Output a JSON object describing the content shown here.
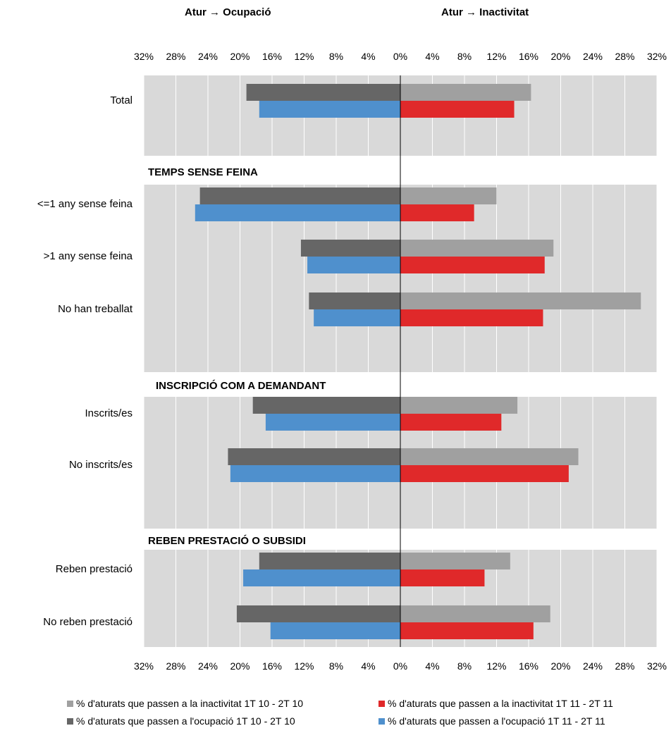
{
  "headers": {
    "left": "Atur → Ocupació",
    "right": "Atur → Inactivitat"
  },
  "chart_data": {
    "type": "bar",
    "orientation": "horizontal",
    "layout": "diverging",
    "tick_labels": [
      "32%",
      "28%",
      "24%",
      "20%",
      "16%",
      "12%",
      "8%",
      "4%",
      "0%",
      "4%",
      "8%",
      "12%",
      "16%",
      "20%",
      "24%",
      "28%",
      "32%"
    ],
    "xlim": [
      -32,
      32
    ],
    "grid": true,
    "legend_position": "bottom",
    "sections": [
      {
        "title": "",
        "categories": [
          "Total"
        ]
      },
      {
        "title": "TEMPS SENSE FEINA",
        "categories": [
          "<=1 any sense feina",
          ">1 any sense feina",
          "No han treballat "
        ]
      },
      {
        "title": "INSCRIPCIÓ COM A DEMANDANT",
        "categories": [
          "Inscrits/es",
          "No inscrits/es"
        ]
      },
      {
        "title": "REBEN PRESTACIÓ O SUBSIDI",
        "categories": [
          "Reben prestació",
          "No reben prestació"
        ]
      }
    ],
    "series": [
      {
        "name": "% d'aturats que passen a la inactivitat 1T 10 - 2T 10",
        "side": "right",
        "color": "#a0a0a0",
        "values": [
          16.3,
          12.0,
          19.1,
          30.0,
          14.6,
          22.2,
          13.7,
          18.7
        ]
      },
      {
        "name": "% d'aturats que passen a la inactivitat 1T 11 - 2T 11",
        "side": "right",
        "color": "#e0292a",
        "values": [
          14.2,
          9.2,
          18.0,
          17.8,
          12.6,
          21.0,
          10.5,
          16.6
        ]
      },
      {
        "name": "% d'aturats que passen a l'ocupació 1T 10 - 2T 10",
        "side": "left",
        "color": "#666666",
        "values": [
          19.2,
          25.0,
          12.4,
          11.4,
          18.4,
          21.5,
          17.6,
          20.4
        ]
      },
      {
        "name": "% d'aturats que passen a l'ocupació 1T 11 - 2T 11",
        "side": "left",
        "color": "#4f90cd",
        "values": [
          17.6,
          25.6,
          11.6,
          10.8,
          16.8,
          21.2,
          19.6,
          16.2
        ]
      }
    ]
  }
}
